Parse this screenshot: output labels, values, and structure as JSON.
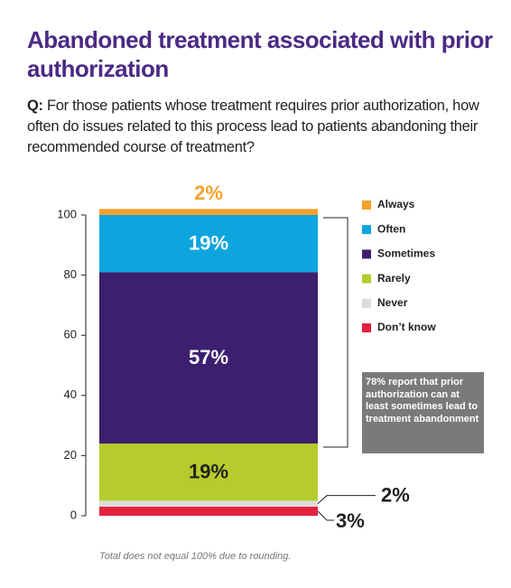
{
  "chart_data": {
    "type": "stacked-bar",
    "title": "Abandoned treatment associated with prior authorization",
    "question_label": "Q:",
    "question": "For those patients whose treatment requires prior authorization, how often do issues related to this process lead to patients abandoning their recommended course of treatment?",
    "series": [
      {
        "name": "Always",
        "color": "#f7a12b",
        "values": [
          2
        ],
        "value_labels": [
          "2%"
        ]
      },
      {
        "name": "Often",
        "color": "#0ea5df",
        "values": [
          19
        ],
        "value_labels": [
          "19%"
        ]
      },
      {
        "name": "Sometimes",
        "color": "#3c1f6f",
        "values": [
          57
        ],
        "value_labels": [
          "57%"
        ]
      },
      {
        "name": "Rarely",
        "color": "#b6cc2c",
        "values": [
          19
        ],
        "value_labels": [
          "19%"
        ]
      },
      {
        "name": "Never",
        "color": "#dcdcdc",
        "values": [
          2
        ],
        "value_labels": [
          "2%"
        ]
      },
      {
        "name": "Don’t know",
        "color": "#e4203f",
        "values": [
          3
        ],
        "value_labels": [
          "3%"
        ]
      }
    ],
    "ylim": [
      0,
      100
    ],
    "yticks": [
      0,
      20,
      40,
      60,
      80,
      100
    ],
    "annotation": "78% report that prior authorization can at least sometimes lead to treatment abandonment",
    "footnote": "Total does not equal 100% due to rounding."
  }
}
